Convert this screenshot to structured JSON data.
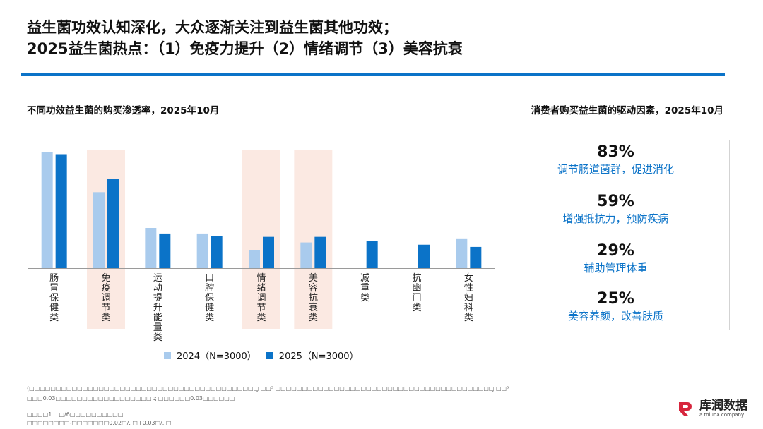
{
  "title": {
    "line1": "益生菌功效认知深化，大众逐渐关注到益生菌其他功效；",
    "line2": "2025益生菌热点：（1）免疫力提升（2）情绪调节（3）美容抗衰"
  },
  "left_subtitle": "不同功效益生菌的购买渗透率，2025年10月",
  "right_subtitle": "消费者购买益生菌的驱动因素，2025年10月",
  "colors": {
    "accent": "#0b73c8",
    "series_2024": "#a9cbed",
    "series_2025": "#0b73c8",
    "highlight": "#fbe9e2"
  },
  "chart_data": {
    "type": "bar",
    "categories": [
      "肠胃保健类",
      "免疫调节类",
      "运动提升能量类",
      "口腔保健类",
      "情绪调节类",
      "美容抗衰类",
      "减重类",
      "抗幽门类",
      "女性妇科类"
    ],
    "series": [
      {
        "name": "2024（N=3000）",
        "values": [
          52,
          34,
          18,
          15.5,
          8,
          11.5,
          null,
          null,
          13
        ]
      },
      {
        "name": "2025（N=3000）",
        "values": [
          51,
          40,
          15.5,
          14.5,
          14,
          14,
          12,
          10.5,
          9.5
        ]
      }
    ],
    "highlighted_categories": [
      "免疫调节类",
      "情绪调节类",
      "美容抗衰类"
    ],
    "ylim": [
      0,
      60
    ],
    "legend_position": "bottom"
  },
  "drivers": [
    {
      "pct": "83%",
      "label": "调节肠道菌群，促进消化"
    },
    {
      "pct": "59%",
      "label": "增强抵抗力，预防疾病"
    },
    {
      "pct": "29%",
      "label": "辅助管理体重"
    },
    {
      "pct": "25%",
      "label": "美容养颜，改善肤质"
    }
  ],
  "footnotes": {
    "line1": "(□□□□□□□□□□□□□□□□□□□□□□□□□□□□□□□□□□□□□□□□□□□̥ □□³ □□□□□□□□□□□□□□□□□□□□□□□□□□□□□□□□□□□□□□□□□̥ □□³",
    "line2": "□□□0.03□□□□□□□□□□□□□□□□□□ ȥ □□□□□□0.03□□□□□□",
    "line3": "□□□□1. . □/6□□□□□□□□□□",
    "line4": "□□□□□□□□-□□□□□□□0.02□/. □+0.03□/. □"
  },
  "logo": {
    "name": "库润数据",
    "tagline": "a toluna company"
  }
}
